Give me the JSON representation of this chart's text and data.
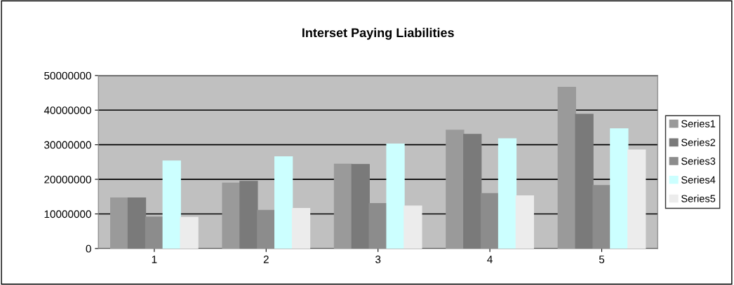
{
  "chart_data": {
    "type": "bar",
    "title": "Interset Paying Liabilities",
    "categories": [
      "1",
      "2",
      "3",
      "4",
      "5"
    ],
    "series": [
      {
        "name": "Series1",
        "color": "#9a9a9a",
        "values": [
          14600000,
          18900000,
          24400000,
          34200000,
          46600000
        ]
      },
      {
        "name": "Series2",
        "color": "#7a7a7a",
        "values": [
          14600000,
          19400000,
          24300000,
          33000000,
          38800000
        ]
      },
      {
        "name": "Series3",
        "color": "#8c8c8c",
        "values": [
          9100000,
          11000000,
          13000000,
          15900000,
          18200000
        ]
      },
      {
        "name": "Series4",
        "color": "#ccffff",
        "values": [
          25300000,
          26500000,
          30200000,
          31700000,
          34600000
        ]
      },
      {
        "name": "Series5",
        "color": "#ececec",
        "values": [
          9000000,
          11600000,
          12300000,
          15200000,
          28500000
        ]
      }
    ],
    "ylim": [
      0,
      50000000
    ],
    "yticks": [
      0,
      10000000,
      20000000,
      30000000,
      40000000,
      50000000
    ],
    "grid": "y",
    "legend": "right"
  }
}
